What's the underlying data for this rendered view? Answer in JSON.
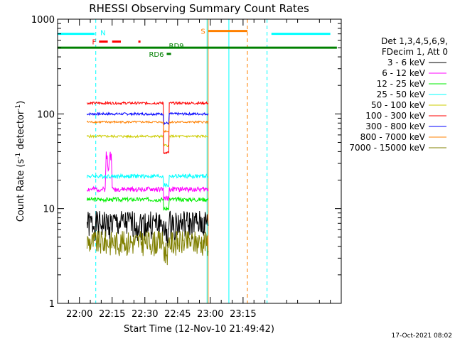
{
  "chart_data": {
    "type": "line",
    "title": "RHESSI Observing Summary Count Rates",
    "xlabel": "Start Time (12-Nov-10 21:49:42)",
    "ylabel_main": "Count Rate (s",
    "ylabel_sup1": "-1",
    "ylabel_mid": " detector",
    "ylabel_sup2": "-1",
    "ylabel_end": ")",
    "y_scale": "log",
    "ylim": [
      1,
      1000
    ],
    "y_ticks": [
      {
        "value": 1,
        "label": "1"
      },
      {
        "value": 10,
        "label": "10"
      },
      {
        "value": 100,
        "label": "100"
      },
      {
        "value": 1000,
        "label": "1000"
      }
    ],
    "xlim_min": [
      -10,
      120
    ],
    "x_ticks": [
      {
        "value": 0,
        "label": "22:00"
      },
      {
        "value": 15,
        "label": "22:15"
      },
      {
        "value": 30,
        "label": "22:30"
      },
      {
        "value": 45,
        "label": "22:45"
      },
      {
        "value": 60,
        "label": "23:00"
      },
      {
        "value": 75,
        "label": "23:15"
      }
    ],
    "legend_header": [
      "Det 1,3,4,5,6,9,",
      "FDecim 1, Att 0"
    ],
    "series": [
      {
        "name": "3 - 6 keV",
        "color": "#000000",
        "base": 7,
        "noise": 0.35,
        "seed": 1
      },
      {
        "name": "6 - 12 keV",
        "color": "#ff00ff",
        "base": 16,
        "noise": 0.06,
        "seed": 2
      },
      {
        "name": "12 - 25 keV",
        "color": "#00ee00",
        "base": 12.5,
        "noise": 0.05,
        "seed": 3
      },
      {
        "name": "25 - 50 keV",
        "color": "#00ffff",
        "base": 22,
        "noise": 0.05,
        "seed": 4
      },
      {
        "name": "50 - 100 keV",
        "color": "#cccc00",
        "base": 58,
        "noise": 0.03,
        "seed": 5
      },
      {
        "name": "100 - 300 keV",
        "color": "#ff0000",
        "base": 130,
        "noise": 0.03,
        "seed": 6
      },
      {
        "name": "300 - 800 keV",
        "color": "#0000ff",
        "base": 100,
        "noise": 0.03,
        "seed": 7
      },
      {
        "name": "800 - 7000 keV",
        "color": "#ff8000",
        "base": 82,
        "noise": 0.025,
        "seed": 8
      },
      {
        "name": "7000 - 15000 keV",
        "color": "#808000",
        "base": 4.5,
        "noise": 0.3,
        "seed": 9
      }
    ],
    "data_start_min": 3.5,
    "data_end_min": 59,
    "state_bars": [
      {
        "label": "N",
        "color": "#00ffff",
        "y": 700,
        "segments": [
          [
            -10,
            7
          ],
          [
            88,
            115
          ]
        ]
      },
      {
        "label": "F",
        "color": "#ff0000",
        "y": 580,
        "segments": [
          [
            9,
            13
          ],
          [
            15,
            19
          ],
          [
            27,
            28
          ]
        ]
      },
      {
        "label": "S",
        "color": "#ff8000",
        "y": 750,
        "segments": [
          [
            59,
            77
          ]
        ]
      },
      {
        "label": "RD9",
        "color": "#008000",
        "y": 500,
        "segments": [
          [
            -10,
            118
          ]
        ]
      },
      {
        "label": "RD6",
        "color": "#008000",
        "y": 430,
        "segments": [
          [
            40,
            42
          ]
        ]
      }
    ],
    "vertical_lines": [
      {
        "x": 7.5,
        "color": "#00ffff",
        "style": "dashed"
      },
      {
        "x": 59,
        "color": "#ff8000",
        "style": "solid"
      },
      {
        "x": 58.5,
        "color": "#00ffff",
        "style": "solid"
      },
      {
        "x": 68.5,
        "color": "#00ffff",
        "style": "solid"
      },
      {
        "x": 77,
        "color": "#ff8000",
        "style": "dashed"
      },
      {
        "x": 86,
        "color": "#00ffff",
        "style": "dashed"
      }
    ],
    "footer_date": "17-Oct-2021 08:02"
  }
}
